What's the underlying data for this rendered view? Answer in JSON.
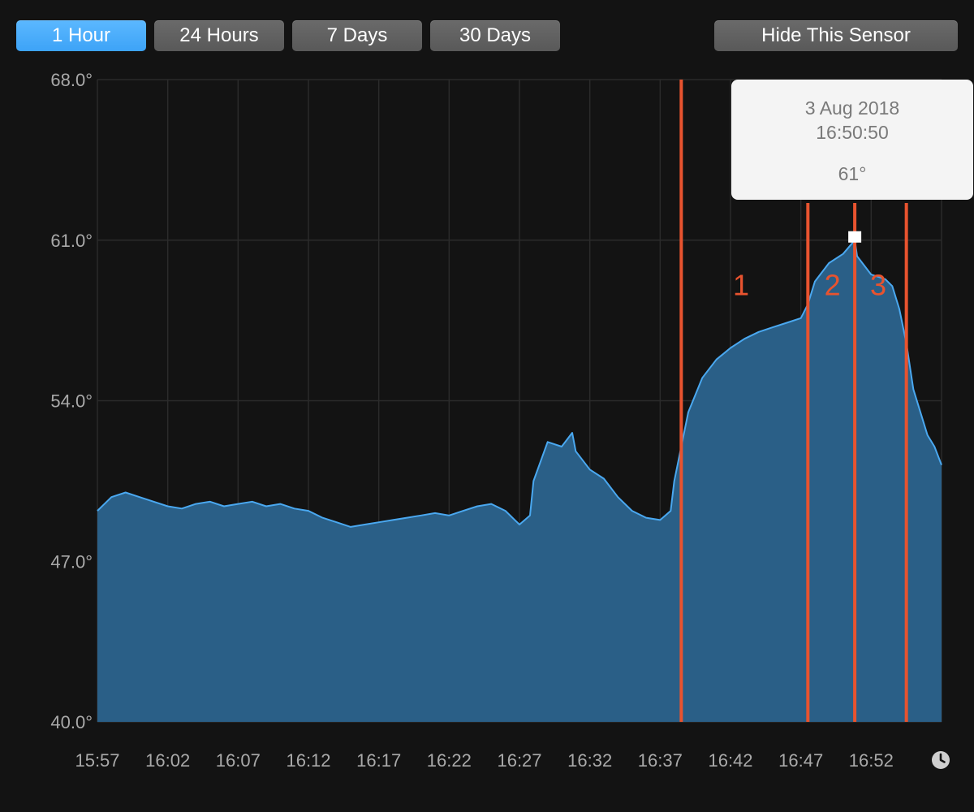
{
  "toolbar": {
    "ranges": [
      "1 Hour",
      "24 Hours",
      "7 Days",
      "30 Days"
    ],
    "active_range": "1 Hour",
    "hide_label": "Hide This Sensor"
  },
  "tooltip": {
    "date": "3 Aug 2018",
    "time": "16:50:50",
    "value": "61°"
  },
  "chart_data": {
    "type": "area",
    "x_start": "15:57",
    "x_end": "16:57",
    "xticks": [
      "15:57",
      "16:02",
      "16:07",
      "16:12",
      "16:17",
      "16:22",
      "16:27",
      "16:32",
      "16:37",
      "16:42",
      "16:47",
      "16:52"
    ],
    "yticks": [
      "40.0°",
      "47.0°",
      "54.0°",
      "61.0°",
      "68.0°"
    ],
    "ylim": [
      40,
      68
    ],
    "grid": true,
    "series": [
      {
        "color": "#4aa8f0",
        "fill": "#2a5f87",
        "points": [
          [
            "15:57",
            49.2
          ],
          [
            "15:58",
            49.8
          ],
          [
            "15:59",
            50.0
          ],
          [
            "16:00",
            49.8
          ],
          [
            "16:01",
            49.6
          ],
          [
            "16:02",
            49.4
          ],
          [
            "16:03",
            49.3
          ],
          [
            "16:04",
            49.5
          ],
          [
            "16:05",
            49.6
          ],
          [
            "16:06",
            49.4
          ],
          [
            "16:07",
            49.5
          ],
          [
            "16:08",
            49.6
          ],
          [
            "16:09",
            49.4
          ],
          [
            "16:10",
            49.5
          ],
          [
            "16:11",
            49.3
          ],
          [
            "16:12",
            49.2
          ],
          [
            "16:13",
            48.9
          ],
          [
            "16:14",
            48.7
          ],
          [
            "16:15",
            48.5
          ],
          [
            "16:16",
            48.6
          ],
          [
            "16:17",
            48.7
          ],
          [
            "16:18",
            48.8
          ],
          [
            "16:19",
            48.9
          ],
          [
            "16:20",
            49.0
          ],
          [
            "16:21",
            49.1
          ],
          [
            "16:22",
            49.0
          ],
          [
            "16:23",
            49.2
          ],
          [
            "16:24",
            49.4
          ],
          [
            "16:25",
            49.5
          ],
          [
            "16:26",
            49.2
          ],
          [
            "16:27",
            48.6
          ],
          [
            "16:27:45",
            49.0
          ],
          [
            "16:28",
            50.5
          ],
          [
            "16:29",
            52.2
          ],
          [
            "16:30",
            52.0
          ],
          [
            "16:30:45",
            52.6
          ],
          [
            "16:31",
            51.8
          ],
          [
            "16:32",
            51.0
          ],
          [
            "16:33",
            50.6
          ],
          [
            "16:34",
            49.8
          ],
          [
            "16:35",
            49.2
          ],
          [
            "16:36",
            48.9
          ],
          [
            "16:37",
            48.8
          ],
          [
            "16:37:45",
            49.2
          ],
          [
            "16:38",
            50.5
          ],
          [
            "16:39",
            53.5
          ],
          [
            "16:40",
            55.0
          ],
          [
            "16:41",
            55.8
          ],
          [
            "16:42",
            56.3
          ],
          [
            "16:43",
            56.7
          ],
          [
            "16:44",
            57.0
          ],
          [
            "16:45",
            57.2
          ],
          [
            "16:46",
            57.4
          ],
          [
            "16:47",
            57.6
          ],
          [
            "16:47:30",
            58.2
          ],
          [
            "16:48",
            59.2
          ],
          [
            "16:49",
            60.0
          ],
          [
            "16:50",
            60.4
          ],
          [
            "16:50:50",
            61.0
          ],
          [
            "16:51",
            60.3
          ],
          [
            "16:52",
            59.5
          ],
          [
            "16:53",
            59.3
          ],
          [
            "16:53:30",
            59.0
          ],
          [
            "16:54",
            58.0
          ],
          [
            "16:54:30",
            56.5
          ],
          [
            "16:55",
            54.5
          ],
          [
            "16:56",
            52.5
          ],
          [
            "16:56:30",
            52.0
          ],
          [
            "16:57",
            51.2
          ]
        ]
      }
    ],
    "annotations": {
      "lines": [
        "16:38:30",
        "16:47:30",
        "16:50:50",
        "16:54:30"
      ],
      "labels": [
        {
          "text": "1",
          "x": "16:42:45",
          "y": 58.6
        },
        {
          "text": "2",
          "x": "16:49:15",
          "y": 58.6
        },
        {
          "text": "3",
          "x": "16:52:30",
          "y": 58.6
        }
      ],
      "color": "#e8532f"
    },
    "marker": {
      "x": "16:50:50",
      "y": 61.0,
      "color": "#ffffff"
    }
  }
}
